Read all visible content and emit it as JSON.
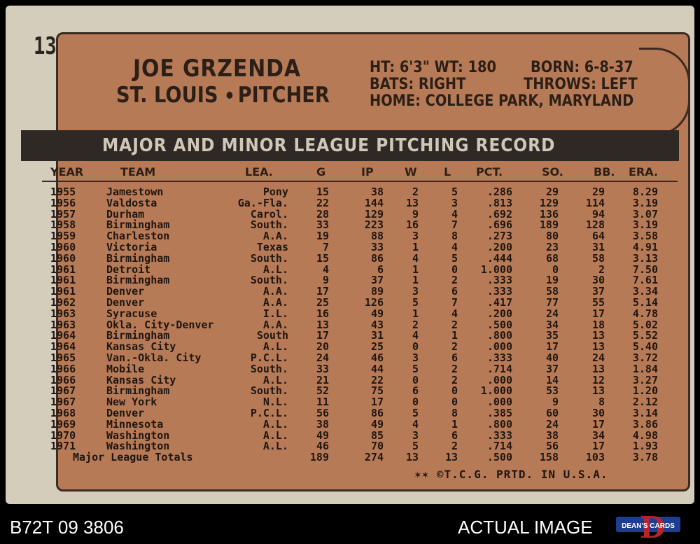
{
  "card": {
    "number": "13",
    "player_name": "JOE GRZENDA",
    "team": "ST. LOUIS",
    "position": "PITCHER",
    "height_weight": "HT: 6'3\" WT: 180",
    "born": "BORN: 6-8-37",
    "bats": "BATS: RIGHT",
    "throws": "THROWS: LEFT",
    "home": "HOME: COLLEGE PARK, MARYLAND",
    "banner": "MAJOR AND MINOR LEAGUE PITCHING RECORD",
    "columns": [
      "YEAR",
      "TEAM",
      "LEA.",
      "G",
      "IP",
      "W",
      "L",
      "PCT.",
      "SO.",
      "BB.",
      "ERA."
    ],
    "rows": [
      [
        "1955",
        "Jamestown",
        "Pony",
        "15",
        "38",
        "2",
        "5",
        ".286",
        "29",
        "29",
        "8.29"
      ],
      [
        "1956",
        "Valdosta",
        "Ga.-Fla.",
        "22",
        "144",
        "13",
        "3",
        ".813",
        "129",
        "114",
        "3.19"
      ],
      [
        "1957",
        "Durham",
        "Carol.",
        "28",
        "129",
        "9",
        "4",
        ".692",
        "136",
        "94",
        "3.07"
      ],
      [
        "1958",
        "Birmingham",
        "South.",
        "33",
        "223",
        "16",
        "7",
        ".696",
        "189",
        "128",
        "3.19"
      ],
      [
        "1959",
        "Charleston",
        "A.A.",
        "19",
        "88",
        "3",
        "8",
        ".273",
        "80",
        "64",
        "3.58"
      ],
      [
        "1960",
        "Victoria",
        "Texas",
        "7",
        "33",
        "1",
        "4",
        ".200",
        "23",
        "31",
        "4.91"
      ],
      [
        "1960",
        "Birmingham",
        "South.",
        "15",
        "86",
        "4",
        "5",
        ".444",
        "68",
        "58",
        "3.13"
      ],
      [
        "1961",
        "Detroit",
        "A.L.",
        "4",
        "6",
        "1",
        "0",
        "1.000",
        "0",
        "2",
        "7.50"
      ],
      [
        "1961",
        "Birmingham",
        "South.",
        "9",
        "37",
        "1",
        "2",
        ".333",
        "19",
        "30",
        "7.61"
      ],
      [
        "1961",
        "Denver",
        "A.A.",
        "17",
        "89",
        "3",
        "6",
        ".333",
        "58",
        "37",
        "3.34"
      ],
      [
        "1962",
        "Denver",
        "A.A.",
        "25",
        "126",
        "5",
        "7",
        ".417",
        "77",
        "55",
        "5.14"
      ],
      [
        "1963",
        "Syracuse",
        "I.L.",
        "16",
        "49",
        "1",
        "4",
        ".200",
        "24",
        "17",
        "4.78"
      ],
      [
        "1963",
        "Okla. City-Denver",
        "A.A.",
        "13",
        "43",
        "2",
        "2",
        ".500",
        "34",
        "18",
        "5.02"
      ],
      [
        "1964",
        "Birmingham",
        "South",
        "17",
        "31",
        "4",
        "1",
        ".800",
        "35",
        "13",
        "5.52"
      ],
      [
        "1964",
        "Kansas City",
        "A.L.",
        "20",
        "25",
        "0",
        "2",
        ".000",
        "17",
        "13",
        "5.40"
      ],
      [
        "1965",
        "Van.-Okla. City",
        "P.C.L.",
        "24",
        "46",
        "3",
        "6",
        ".333",
        "40",
        "24",
        "3.72"
      ],
      [
        "1966",
        "Mobile",
        "South.",
        "33",
        "44",
        "5",
        "2",
        ".714",
        "37",
        "13",
        "1.84"
      ],
      [
        "1966",
        "Kansas City",
        "A.L.",
        "21",
        "22",
        "0",
        "2",
        ".000",
        "14",
        "12",
        "3.27"
      ],
      [
        "1967",
        "Birmingham",
        "South.",
        "52",
        "75",
        "6",
        "0",
        "1.000",
        "53",
        "13",
        "1.20"
      ],
      [
        "1967",
        "New York",
        "N.L.",
        "11",
        "17",
        "0",
        "0",
        ".000",
        "9",
        "8",
        "2.12"
      ],
      [
        "1968",
        "Denver",
        "P.C.L.",
        "56",
        "86",
        "5",
        "8",
        ".385",
        "60",
        "30",
        "3.14"
      ],
      [
        "1969",
        "Minnesota",
        "A.L.",
        "38",
        "49",
        "4",
        "1",
        ".800",
        "24",
        "17",
        "3.86"
      ],
      [
        "1970",
        "Washington",
        "A.L.",
        "49",
        "85",
        "3",
        "6",
        ".333",
        "38",
        "34",
        "4.98"
      ],
      [
        "1971",
        "Washington",
        "A.L.",
        "46",
        "70",
        "5",
        "2",
        ".714",
        "56",
        "17",
        "1.93"
      ]
    ],
    "totals": [
      "Major League Totals",
      "189",
      "274",
      "13",
      "13",
      ".500",
      "158",
      "103",
      "3.78"
    ],
    "copyright": "✶✶  ©T.C.G. PRTD. IN U.S.A."
  },
  "footer": {
    "inventory_code": "B72T 09 3806",
    "actual_image_label": "ACTUAL IMAGE",
    "logo_text": "DEAN'S CARDS",
    "logo_letter": "D"
  },
  "colors": {
    "card_stock": "#d5cdbb",
    "plate_brown": "#b77a56",
    "banner_dark": "#2e2925",
    "ink": "#1f1612"
  }
}
